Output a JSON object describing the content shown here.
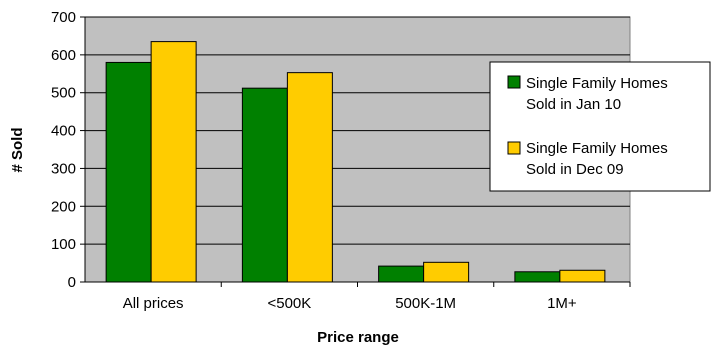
{
  "chart_data": {
    "type": "bar",
    "title": "",
    "xlabel": "Price range",
    "ylabel": "# Sold",
    "categories": [
      "All prices",
      "<500K",
      "500K-1M",
      "1M+"
    ],
    "series": [
      {
        "name": "Single Family Homes Sold in Jan 10",
        "values": [
          580,
          512,
          42,
          27
        ],
        "color": "#008000"
      },
      {
        "name": "Single Family Homes Sold in Dec 09",
        "values": [
          635,
          553,
          52,
          31
        ],
        "color": "#FFCC00"
      }
    ],
    "ylim": [
      0,
      700
    ],
    "yticks": [
      0,
      100,
      200,
      300,
      400,
      500,
      600,
      700
    ],
    "grid": true,
    "legend": "right",
    "plot_background": "#C0C0C0"
  }
}
